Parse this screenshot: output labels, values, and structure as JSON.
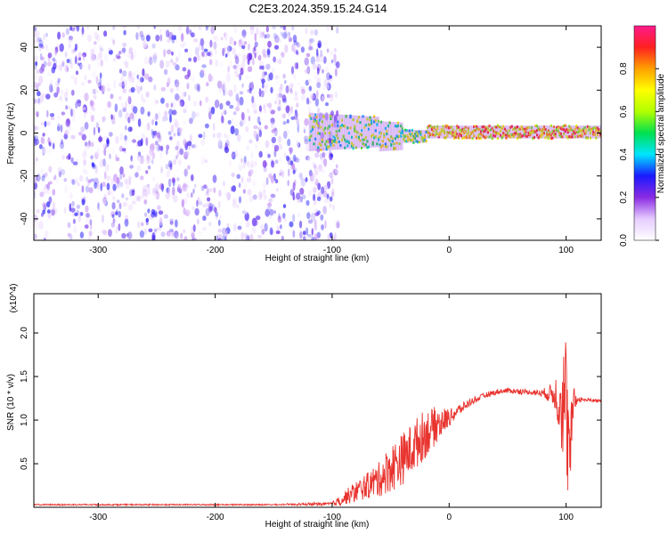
{
  "title": "C2E3.2024.359.15.24.G14",
  "chart_data": [
    {
      "type": "heatmap",
      "xlabel": "Height of straight line (km)",
      "ylabel": "Frequency (Hz)",
      "xlim": [
        -355,
        130
      ],
      "ylim": [
        -50,
        50
      ],
      "xticks": [
        -300,
        -200,
        -100,
        0,
        100
      ],
      "yticks": [
        -40,
        -20,
        0,
        20,
        40
      ],
      "colorbar": {
        "label": "Normalized spectral amplitude",
        "range": [
          0,
          1
        ],
        "ticks": [
          0.0,
          0.2,
          0.4,
          0.6,
          0.8
        ],
        "tick_labels": [
          "0.0",
          "0.2",
          "0.4",
          "0.6",
          "0.8"
        ],
        "colors": [
          "#ffffff",
          "#e6ccff",
          "#8a2be2",
          "#1a1aff",
          "#00e5ff",
          "#00e050",
          "#b0ff00",
          "#ffff00",
          "#ffa000",
          "#ff2020",
          "#ff1a8c"
        ]
      },
      "regions": [
        {
          "name": "noise",
          "x": [
            -355,
            -105
          ],
          "y": [
            -50,
            50
          ],
          "amplitude": 0.08
        },
        {
          "name": "signal",
          "x": [
            -120,
            130
          ],
          "center_freq": 0.5,
          "amplitude_peak": 0.95
        }
      ]
    },
    {
      "type": "line",
      "xlabel": "Height of straight line (km)",
      "ylabel": "SNR (10 * v/v)",
      "y_multiplier": "(x10^4)",
      "xlim": [
        -355,
        130
      ],
      "ylim": [
        0,
        2.45
      ],
      "xticks": [
        -300,
        -200,
        -100,
        0,
        100
      ],
      "yticks": [
        0.5,
        1.0,
        1.5,
        2.0
      ],
      "ytick_labels": [
        "0.5",
        "1.0",
        "1.5",
        "2.0"
      ],
      "color": "#e8332e",
      "x": [
        -355,
        -150,
        -100,
        -90,
        -80,
        -70,
        -60,
        -50,
        -40,
        -30,
        -20,
        -10,
        0,
        10,
        20,
        30,
        40,
        50,
        60,
        70,
        80,
        90,
        95,
        100,
        103,
        106,
        110,
        120,
        130
      ],
      "values": [
        0.03,
        0.03,
        0.04,
        0.1,
        0.18,
        0.25,
        0.32,
        0.45,
        0.55,
        0.7,
        0.85,
        0.95,
        1.03,
        1.13,
        1.22,
        1.28,
        1.32,
        1.34,
        1.33,
        1.32,
        1.31,
        1.3,
        1.25,
        1.15,
        0.45,
        1.2,
        1.24,
        1.23,
        1.22
      ],
      "noise": [
        0,
        0,
        0.02,
        0.08,
        0.12,
        0.15,
        0.2,
        0.28,
        0.3,
        0.3,
        0.28,
        0.2,
        0.1,
        0.06,
        0.04,
        0.03,
        0.03,
        0.03,
        0.03,
        0.03,
        0.04,
        0.15,
        0.5,
        0.9,
        0.6,
        0.2,
        0.03,
        0.02,
        0.02
      ]
    }
  ]
}
